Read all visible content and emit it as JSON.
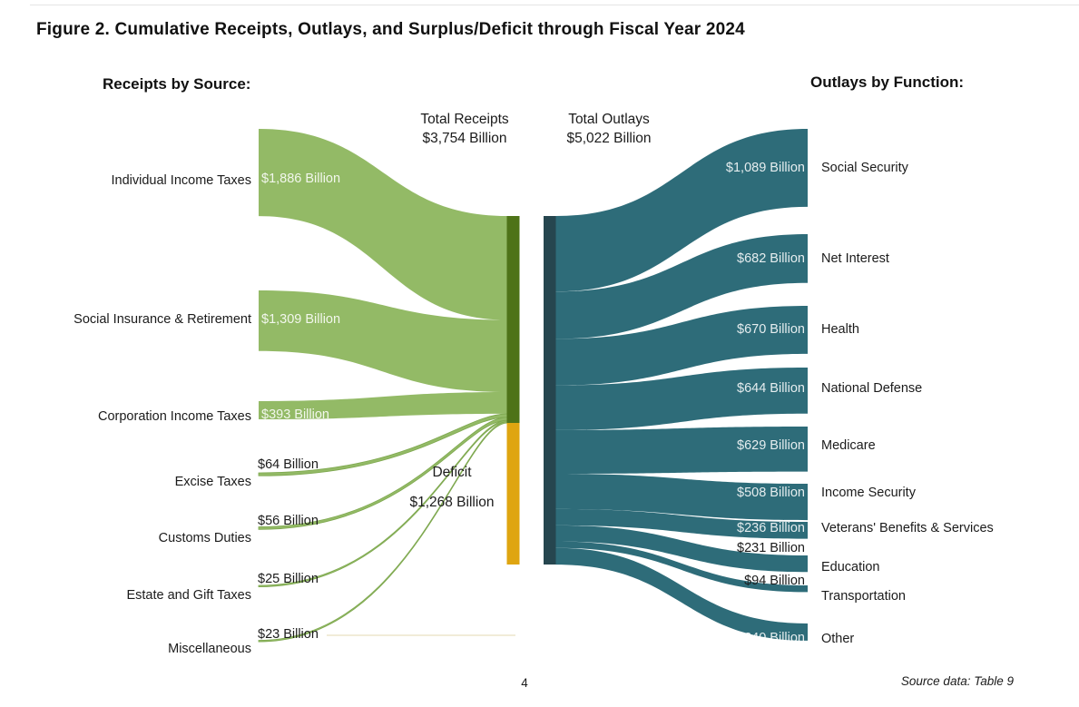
{
  "page": {
    "title": "Figure 2. Cumulative Receipts, Outlays, and Surplus/Deficit through Fiscal Year 2024",
    "page_number": "4",
    "source_note": "Source data: Table 9"
  },
  "sankey": {
    "left_header": "Receipts by Source:",
    "right_header": "Outlays by Function:",
    "total_receipts_label": "Total Receipts",
    "total_receipts_value": "$3,754 Billion",
    "total_outlays_label": "Total Outlays",
    "total_outlays_value": "$5,022 Billion",
    "deficit_label": "Deficit",
    "deficit_value": "$1,268 Billion"
  },
  "chart_data": {
    "type": "sankey",
    "title": "Figure 2. Cumulative Receipts, Outlays, and Surplus/Deficit through Fiscal Year 2024",
    "units": "billions of US dollars",
    "totals": {
      "receipts": 3754,
      "outlays": 5022,
      "deficit": 1268
    },
    "receipts_by_source": [
      {
        "label": "Individual Income Taxes",
        "value": 1886,
        "display": "$1,886 Billion"
      },
      {
        "label": "Social Insurance & Retirement",
        "value": 1309,
        "display": "$1,309 Billion"
      },
      {
        "label": "Corporation Income Taxes",
        "value": 393,
        "display": "$393 Billion"
      },
      {
        "label": "Excise Taxes",
        "value": 64,
        "display": "$64 Billion"
      },
      {
        "label": "Customs Duties",
        "value": 56,
        "display": "$56 Billion"
      },
      {
        "label": "Estate and Gift Taxes",
        "value": 25,
        "display": "$25 Billion"
      },
      {
        "label": "Miscellaneous",
        "value": 23,
        "display": "$23 Billion"
      }
    ],
    "outlays_by_function": [
      {
        "label": "Social Security",
        "value": 1089,
        "display": "$1,089 Billion"
      },
      {
        "label": "Net Interest",
        "value": 682,
        "display": "$682 Billion"
      },
      {
        "label": "Health",
        "value": 670,
        "display": "$670 Billion"
      },
      {
        "label": "National Defense",
        "value": 644,
        "display": "$644 Billion"
      },
      {
        "label": "Medicare",
        "value": 629,
        "display": "$629 Billion"
      },
      {
        "label": "Income Security",
        "value": 508,
        "display": "$508 Billion"
      },
      {
        "label": "Veterans' Benefits & Services",
        "value": 236,
        "display": "$236 Billion"
      },
      {
        "label": "Education",
        "value": 231,
        "display": "$231 Billion"
      },
      {
        "label": "Transportation",
        "value": 94,
        "display": "$94 Billion"
      },
      {
        "label": "Other",
        "value": 240,
        "display": "$240 Billion"
      }
    ],
    "colors": {
      "receipt_flow": "#93ba66",
      "receipt_flow_edge": "#7ea84f",
      "receipts_bar": "#4e7318",
      "deficit_bar": "#dfa511",
      "outlays_bar": "#26464f",
      "outlay_flow": "#2e6c79"
    }
  }
}
